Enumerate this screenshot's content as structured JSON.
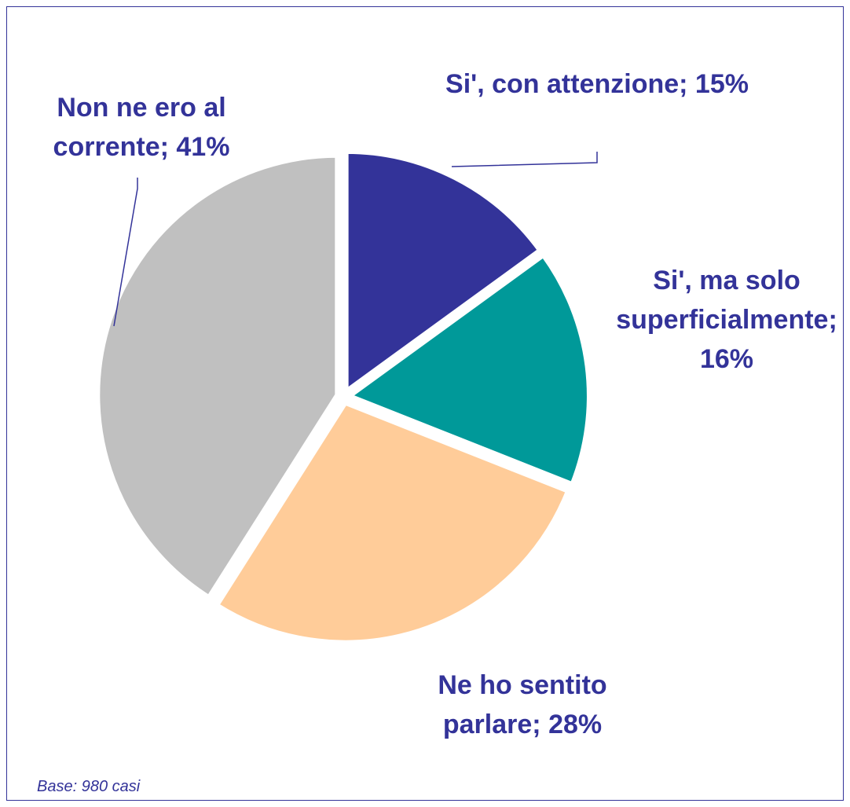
{
  "chart_data": {
    "type": "pie",
    "categories": [
      "Si', con attenzione;",
      "Si', ma solo superficialmente;",
      "Ne ho sentito parlare;",
      "Non ne ero al corrente;"
    ],
    "values": [
      15,
      16,
      28,
      41
    ],
    "value_labels": [
      "15%",
      "16%",
      "28%",
      "41%"
    ],
    "colors": [
      "#333399",
      "#009999",
      "#FFCC99",
      "#C0C0C0"
    ],
    "note": "Base: 980 casi"
  }
}
